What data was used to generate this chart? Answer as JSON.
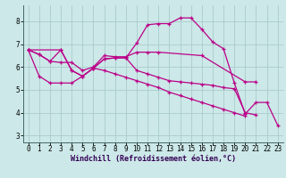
{
  "bg_color": "#cce8e8",
  "grid_color": "#aacccc",
  "line_color": "#bb0088",
  "marker": "+",
  "markersize": 3.5,
  "linewidth": 0.9,
  "xlabel": "Windchill (Refroidissement éolien,°C)",
  "xlabel_fontsize": 6.0,
  "tick_fontsize": 5.5,
  "xlim": [
    -0.5,
    23.5
  ],
  "ylim": [
    2.7,
    8.7
  ],
  "yticks": [
    3,
    4,
    5,
    6,
    7,
    8
  ],
  "xticks": [
    0,
    1,
    2,
    3,
    4,
    5,
    6,
    7,
    8,
    9,
    10,
    11,
    12,
    13,
    14,
    15,
    16,
    17,
    18,
    19,
    20,
    21,
    22,
    23
  ],
  "series": [
    {
      "x": [
        0,
        1,
        2,
        3,
        4,
        5,
        6,
        7,
        8,
        9,
        10,
        11,
        12,
        16,
        20,
        21
      ],
      "y": [
        6.75,
        6.55,
        6.25,
        6.2,
        6.2,
        5.85,
        6.0,
        6.5,
        6.45,
        6.45,
        6.65,
        6.65,
        6.65,
        6.5,
        5.35,
        5.35
      ]
    },
    {
      "x": [
        0,
        3,
        4,
        5,
        6,
        7,
        8,
        9,
        10,
        11,
        12,
        13,
        14,
        15,
        16,
        17,
        18,
        19,
        20,
        21,
        22,
        23
      ],
      "y": [
        6.75,
        6.75,
        5.85,
        5.6,
        5.95,
        6.35,
        6.4,
        6.4,
        7.05,
        7.85,
        7.9,
        7.9,
        8.15,
        8.15,
        7.65,
        7.1,
        6.8,
        5.3,
        3.95,
        4.45,
        4.45,
        3.45
      ]
    },
    {
      "x": [
        0,
        1,
        2,
        3,
        4,
        5,
        6,
        7,
        8,
        9,
        10,
        11,
        12,
        13,
        14,
        15,
        16,
        17,
        18,
        19,
        20,
        21
      ],
      "y": [
        6.75,
        6.55,
        6.25,
        6.75,
        5.85,
        5.6,
        5.95,
        6.35,
        6.4,
        6.4,
        5.85,
        5.7,
        5.55,
        5.4,
        5.35,
        5.3,
        5.25,
        5.2,
        5.1,
        5.05,
        4.0,
        3.9
      ]
    },
    {
      "x": [
        0,
        1,
        2,
        3,
        4,
        5,
        6,
        7,
        8,
        9,
        10,
        11,
        12,
        13,
        14,
        15,
        16,
        17,
        18,
        19,
        20
      ],
      "y": [
        6.75,
        5.6,
        5.3,
        5.3,
        5.3,
        5.6,
        5.95,
        5.85,
        5.7,
        5.55,
        5.4,
        5.25,
        5.1,
        4.9,
        4.75,
        4.6,
        4.45,
        4.3,
        4.15,
        4.0,
        3.85
      ]
    }
  ],
  "spine_color": "#446666",
  "axis_bg": "#cce8e8"
}
